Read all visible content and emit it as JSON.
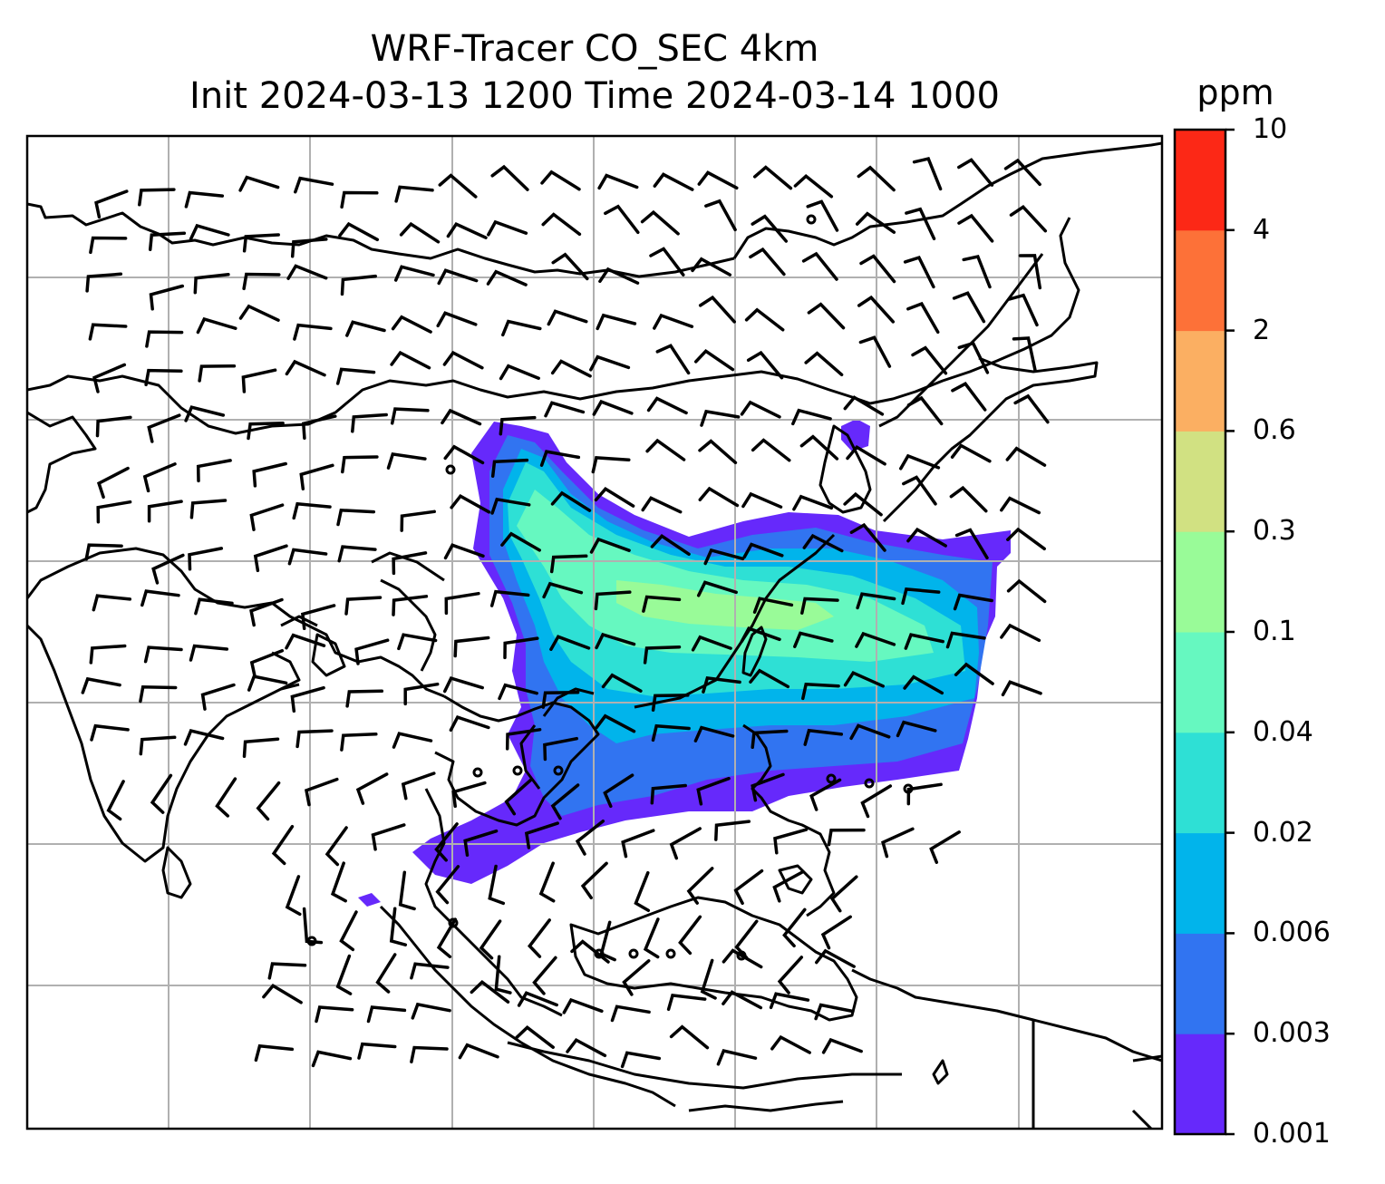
{
  "title": {
    "line1": "WRF-Tracer CO_SEC 4km",
    "line2": "Init 2024-03-13 1200 Time 2024-03-14 1000"
  },
  "colorbar": {
    "unit": "ppm",
    "levels": [
      "0.001",
      "0.003",
      "0.006",
      "0.02",
      "0.04",
      "0.1",
      "0.3",
      "0.6",
      "2",
      "4",
      "10"
    ],
    "colors": [
      "#6629fb",
      "#3174f1",
      "#01b4eb",
      "#2ee0d5",
      "#66f8c0",
      "#99fb98",
      "#d1e182",
      "#fbaf62",
      "#fd7138",
      "#fc2816"
    ]
  },
  "colors": {
    "coastline": "#000000",
    "grid": "#b0b0b0",
    "wind_barb": "#000000"
  }
}
